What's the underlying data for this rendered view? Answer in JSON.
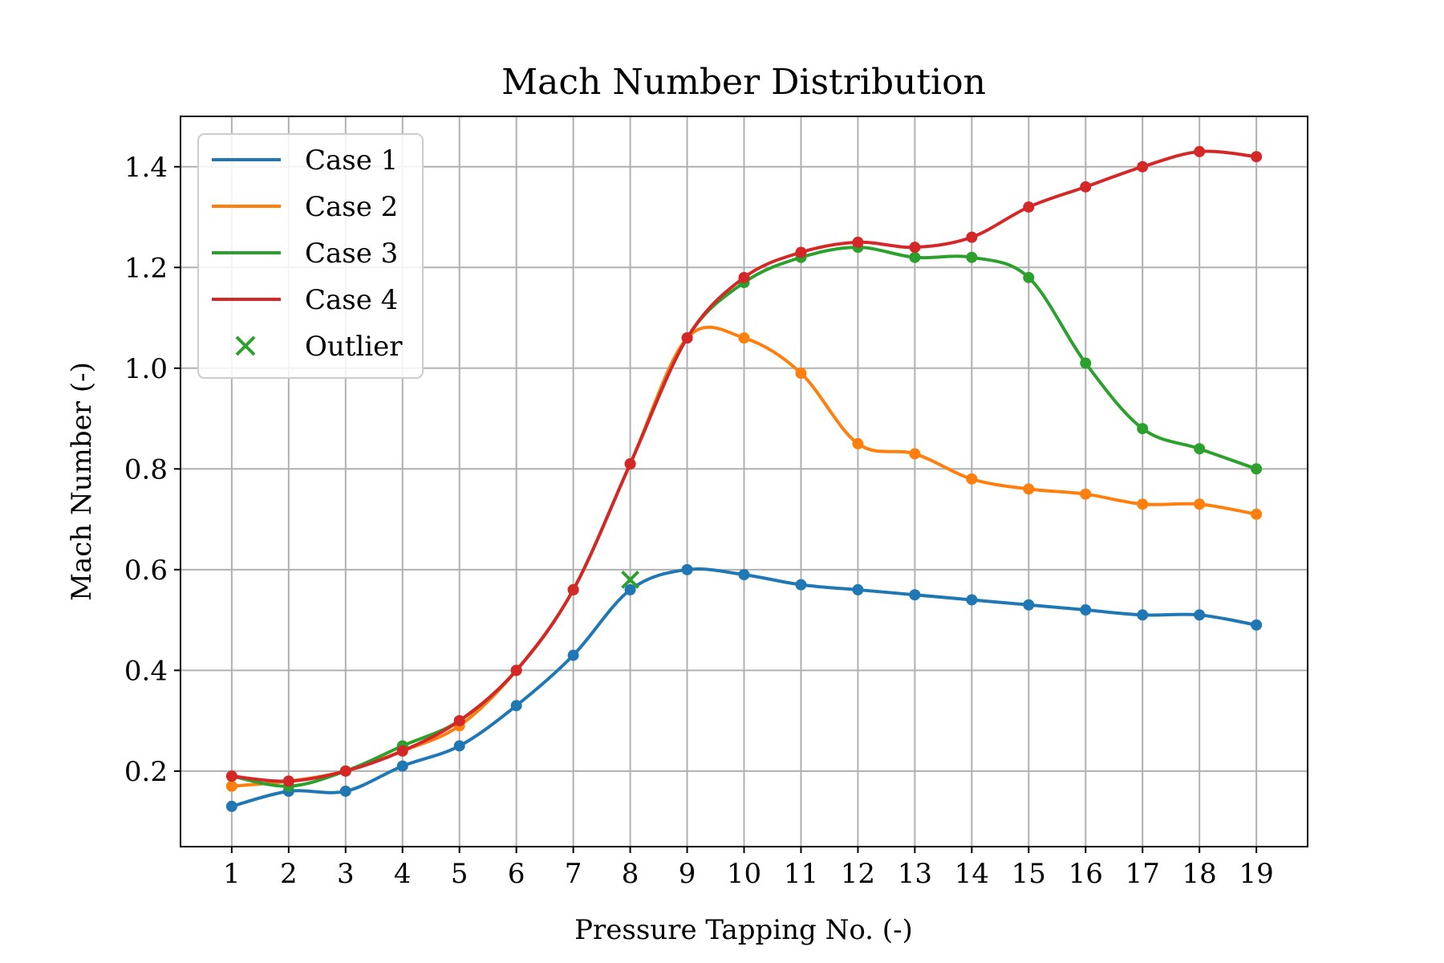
{
  "chart_data": {
    "type": "line",
    "title": "Mach Number Distribution",
    "xlabel": "Pressure Tapping No. (-)",
    "ylabel": "Mach Number (-)",
    "x": [
      1,
      2,
      3,
      4,
      5,
      6,
      7,
      8,
      9,
      10,
      11,
      12,
      13,
      14,
      15,
      16,
      17,
      18,
      19
    ],
    "xlim": [
      0.1,
      19.9
    ],
    "ylim": [
      0.05,
      1.5
    ],
    "xticks": [
      "1",
      "2",
      "3",
      "4",
      "5",
      "6",
      "7",
      "8",
      "9",
      "10",
      "11",
      "12",
      "13",
      "14",
      "15",
      "16",
      "17",
      "18",
      "19"
    ],
    "yticks": [
      "0.2",
      "0.4",
      "0.6",
      "0.8",
      "1.0",
      "1.2",
      "1.4"
    ],
    "grid": true,
    "legend_position": "upper-left",
    "series": [
      {
        "name": "Case 1",
        "color": "#1f77b4",
        "values": [
          0.13,
          0.16,
          0.16,
          0.21,
          0.25,
          0.33,
          0.43,
          0.56,
          0.6,
          0.59,
          0.57,
          0.56,
          0.55,
          0.54,
          0.53,
          0.52,
          0.51,
          0.51,
          0.49
        ]
      },
      {
        "name": "Case 2",
        "color": "#ff7f0e",
        "values": [
          0.17,
          0.18,
          0.2,
          0.24,
          0.29,
          0.4,
          0.56,
          0.81,
          1.06,
          1.06,
          0.99,
          0.85,
          0.83,
          0.78,
          0.76,
          0.75,
          0.73,
          0.73,
          0.71
        ]
      },
      {
        "name": "Case 3",
        "color": "#2ca02c",
        "values": [
          0.19,
          0.17,
          0.2,
          0.25,
          0.3,
          0.4,
          0.56,
          0.81,
          1.06,
          1.17,
          1.22,
          1.24,
          1.22,
          1.22,
          1.18,
          1.01,
          0.88,
          0.84,
          0.8
        ]
      },
      {
        "name": "Case 4",
        "color": "#d62728",
        "values": [
          0.19,
          0.18,
          0.2,
          0.24,
          0.3,
          0.4,
          0.56,
          0.81,
          1.06,
          1.18,
          1.23,
          1.25,
          1.24,
          1.26,
          1.32,
          1.36,
          1.4,
          1.43,
          1.42
        ]
      }
    ],
    "outliers": [
      {
        "name": "Outlier",
        "x": 8,
        "y": 0.58,
        "color": "#2ca02c",
        "marker": "x"
      }
    ]
  }
}
